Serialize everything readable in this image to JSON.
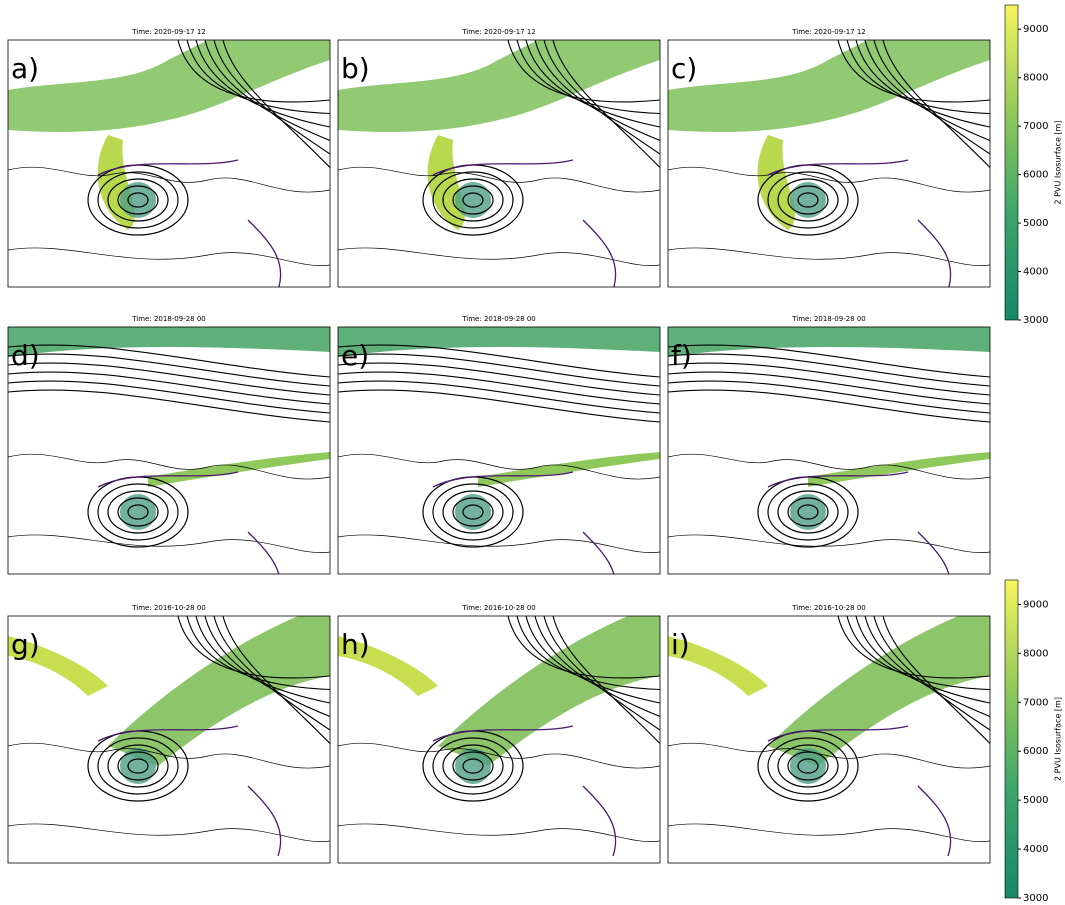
{
  "panels": [
    {
      "label": "a)",
      "title": "Time: 2020-09-17 12"
    },
    {
      "label": "b)",
      "title": "Time: 2020-09-17 12"
    },
    {
      "label": "c)",
      "title": "Time: 2020-09-17 12"
    },
    {
      "label": "d)",
      "title": "Time: 2018-09-28 00"
    },
    {
      "label": "e)",
      "title": "Time: 2018-09-28 00"
    },
    {
      "label": "f)",
      "title": "Time: 2018-09-28 00"
    },
    {
      "label": "g)",
      "title": "Time: 2016-10-28 00"
    },
    {
      "label": "h)",
      "title": "Time: 2016-10-28 00"
    },
    {
      "label": "i)",
      "title": "Time: 2016-10-28 00"
    }
  ],
  "colorbars": [
    {
      "label": "2 PVU Isosurface [m]",
      "lim": [
        3000,
        9500
      ],
      "ticks": [
        3000,
        4000,
        5000,
        6000,
        7000,
        8000,
        9000
      ]
    },
    {
      "label": "2 PVU Isosurface [m]",
      "lim": [
        3000,
        9500
      ],
      "ticks": [
        3000,
        4000,
        5000,
        6000,
        7000,
        8000,
        9000
      ]
    }
  ]
}
